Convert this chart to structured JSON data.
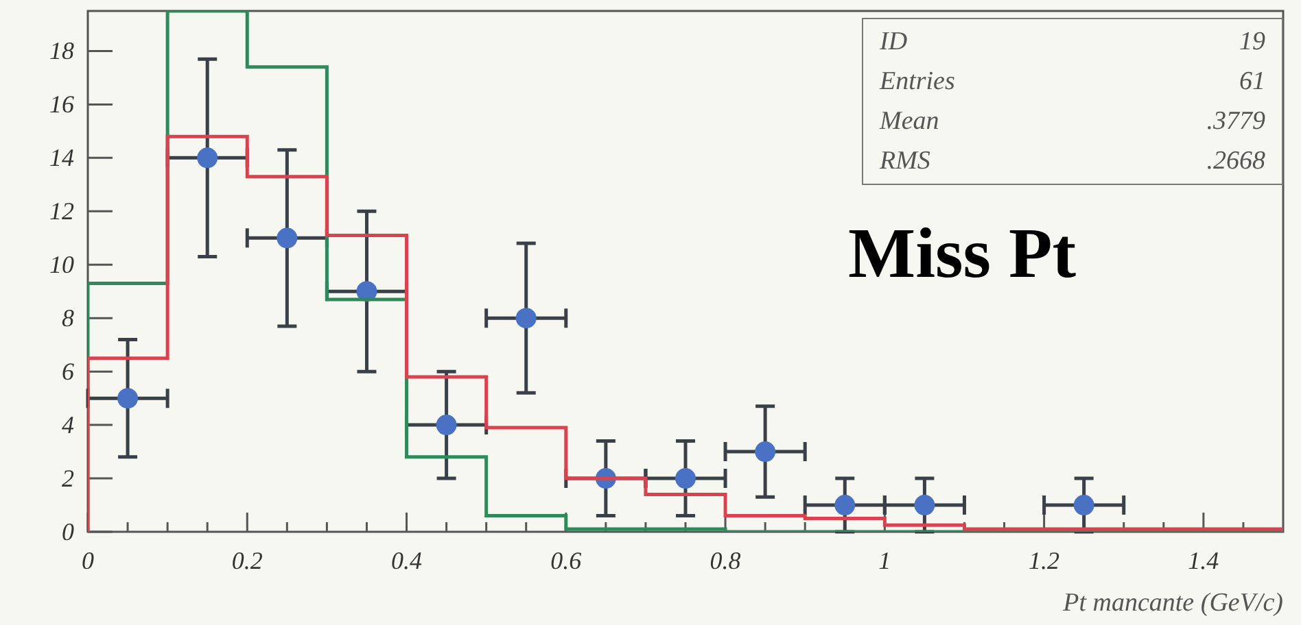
{
  "chart_data": {
    "type": "histogram",
    "title": "Miss Pt",
    "xlabel": "Pt mancante (GeV/c)",
    "annotations": [
      "ID 19",
      "Entries 61",
      "Mean .3779",
      "RMS .2668"
    ],
    "bins": [
      0,
      0.1,
      0.2,
      0.3,
      0.4,
      0.5,
      0.6,
      0.7,
      0.8,
      0.9,
      1.0,
      1.1,
      1.2,
      1.3,
      1.4,
      1.5
    ],
    "series": [
      {
        "type": "histogram",
        "color": "#d9434f",
        "values": [
          6.5,
          14.8,
          13.3,
          11.1,
          5.8,
          3.9,
          2.0,
          1.4,
          0.6,
          0.5,
          0.25,
          0.1,
          0.1,
          0.1,
          0.1
        ]
      },
      {
        "type": "histogram",
        "color": "#2e8a5a",
        "values": [
          9.3,
          19.5,
          17.4,
          8.7,
          2.8,
          0.6,
          0.1,
          0.1,
          0,
          0,
          0,
          0,
          0,
          0,
          0
        ]
      },
      {
        "type": "scatter",
        "color": "#4a72c4",
        "x": [
          0.05,
          0.15,
          0.25,
          0.35,
          0.45,
          0.55,
          0.65,
          0.75,
          0.85,
          0.95,
          1.05,
          1.25
        ],
        "values": [
          5,
          14,
          11,
          9,
          4,
          8,
          2,
          2,
          3,
          1,
          1,
          1
        ],
        "errors": [
          2.2,
          3.7,
          3.3,
          3,
          2,
          2.8,
          1.4,
          1.4,
          1.7,
          1,
          1,
          1
        ],
        "xerrors": [
          0.05,
          0.05,
          0.05,
          0.05,
          0.05,
          0.05,
          0.05,
          0.05,
          0.05,
          0.05,
          0.05,
          0.05
        ]
      }
    ],
    "xlim": [
      0,
      1.5
    ],
    "ylim": [
      0,
      19.5
    ],
    "xticks": [
      0,
      {
        "value": 0.05,
        "label": null
      },
      {
        "value": 0.1,
        "label": null
      },
      {
        "value": 0.15,
        "label": null
      },
      0.2,
      {
        "value": 0.25,
        "label": null
      },
      {
        "value": 0.3,
        "label": null
      },
      {
        "value": 0.35,
        "label": null
      },
      0.4,
      {
        "value": 0.45,
        "label": null
      },
      {
        "value": 0.5,
        "label": null
      },
      {
        "value": 0.55,
        "label": null
      },
      0.6,
      {
        "value": 0.65,
        "label": null
      },
      {
        "value": 0.7,
        "label": null
      },
      {
        "value": 0.75,
        "label": null
      },
      0.8,
      {
        "value": 0.85,
        "label": null
      },
      {
        "value": 0.9,
        "label": null
      },
      {
        "value": 0.95,
        "label": null
      },
      1,
      {
        "value": 1.05,
        "label": null
      },
      {
        "value": 1.1,
        "label": null
      },
      {
        "value": 1.15,
        "label": null
      },
      1.2,
      {
        "value": 1.25,
        "label": null
      },
      {
        "value": 1.3,
        "label": null
      },
      {
        "value": 1.35,
        "label": null
      },
      1.4,
      {
        "value": 1.45,
        "label": null
      }
    ],
    "yticks": [
      0,
      2,
      4,
      6,
      8,
      10,
      12,
      14,
      16,
      18
    ],
    "grid": false,
    "legend": false,
    "marker": "circle"
  }
}
